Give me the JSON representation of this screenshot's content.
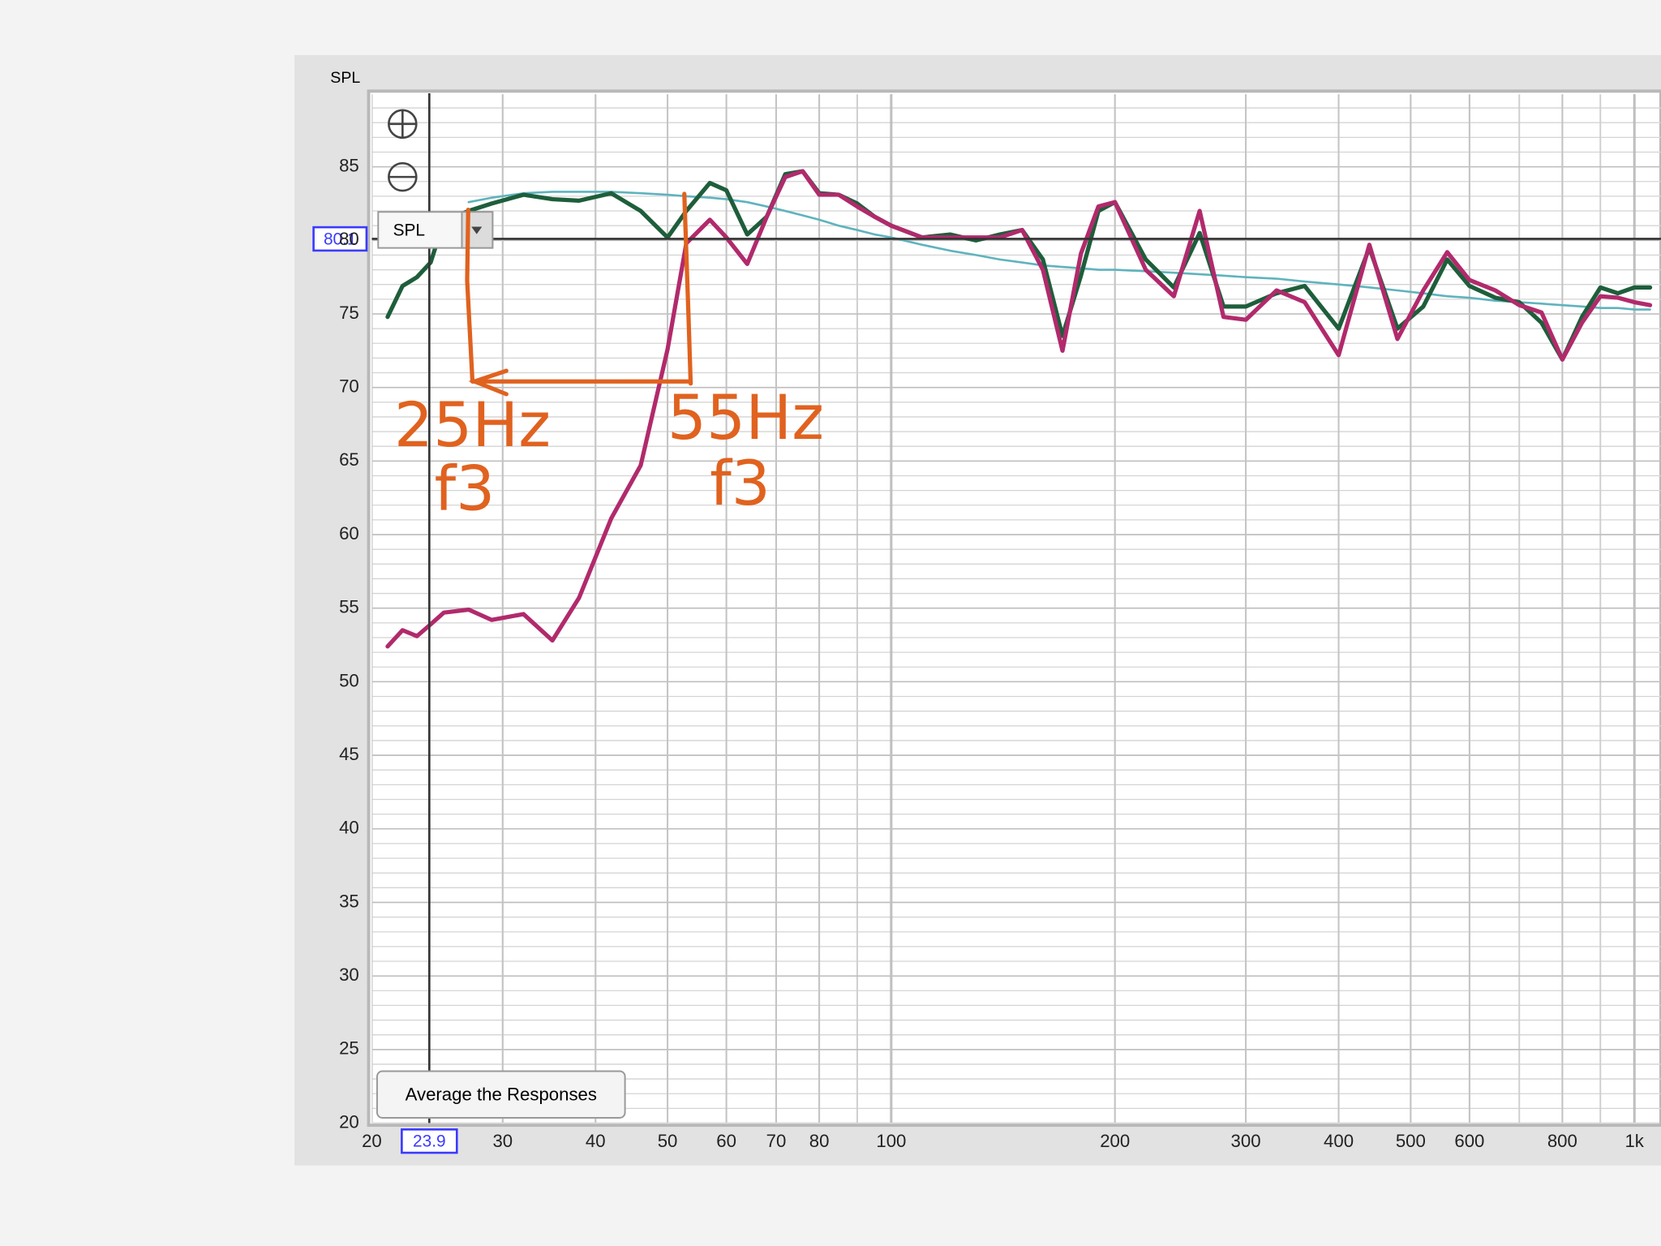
{
  "chart_data": {
    "type": "line",
    "y_label": "SPL",
    "x_scale": "log",
    "grid": true,
    "xlim": [
      20,
      1086
    ],
    "ylim": [
      20,
      90
    ],
    "xticks": [
      20,
      30,
      40,
      50,
      60,
      70,
      80,
      100,
      200,
      300,
      400,
      500,
      600,
      800,
      {
        "value": 1000,
        "label": "1k"
      }
    ],
    "yticks": [
      20,
      25,
      30,
      35,
      40,
      45,
      50,
      55,
      60,
      65,
      70,
      75,
      80,
      85
    ],
    "x": [
      21,
      22,
      23,
      24,
      25,
      27,
      29,
      32,
      35,
      38,
      42,
      46,
      50,
      53,
      57,
      60,
      64,
      68,
      72,
      76,
      80,
      85,
      90,
      95,
      100,
      110,
      120,
      130,
      140,
      150,
      160,
      170,
      180,
      190,
      200,
      220,
      240,
      260,
      280,
      300,
      330,
      360,
      400,
      440,
      480,
      520,
      560,
      600,
      650,
      700,
      750,
      800,
      850,
      900,
      950,
      1000,
      1050
    ],
    "series": [
      {
        "color": "#5fb3bd",
        "values": [
          null,
          null,
          null,
          null,
          null,
          82.6,
          82.9,
          83.2,
          83.3,
          83.3,
          83.3,
          83.2,
          83.1,
          83.0,
          82.9,
          82.8,
          82.6,
          82.3,
          82.0,
          81.7,
          81.4,
          81.0,
          80.7,
          80.4,
          80.2,
          79.7,
          79.3,
          79.0,
          78.7,
          78.5,
          78.3,
          78.2,
          78.1,
          78.0,
          78.0,
          77.9,
          77.8,
          77.7,
          77.6,
          77.5,
          77.4,
          77.2,
          77.0,
          76.8,
          76.6,
          76.4,
          76.2,
          76.1,
          75.9,
          75.8,
          75.7,
          75.6,
          75.5,
          75.4,
          75.4,
          75.3,
          75.3
        ]
      },
      {
        "color": "#1e5e3b",
        "values": [
          74.8,
          76.9,
          77.5,
          78.5,
          81.3,
          82.0,
          82.5,
          83.1,
          82.8,
          82.7,
          83.2,
          82.0,
          80.2,
          82.0,
          83.9,
          83.4,
          80.4,
          81.6,
          84.5,
          84.7,
          83.2,
          83.1,
          82.5,
          81.6,
          81.0,
          80.2,
          80.4,
          80.0,
          80.4,
          80.7,
          78.7,
          73.5,
          77.6,
          82.0,
          82.6,
          78.7,
          76.8,
          80.5,
          75.5,
          75.5,
          76.4,
          76.9,
          74.0,
          79.5,
          74.0,
          75.5,
          78.7,
          76.9,
          76.1,
          75.8,
          74.4,
          71.9,
          74.8,
          76.8,
          76.4,
          76.8,
          76.8
        ]
      },
      {
        "color": "#b12a6c",
        "values": [
          52.4,
          53.5,
          53.1,
          53.9,
          54.7,
          54.9,
          54.2,
          54.6,
          52.8,
          55.7,
          61.1,
          64.7,
          72.6,
          79.8,
          81.4,
          80.2,
          78.4,
          81.6,
          84.3,
          84.7,
          83.1,
          83.1,
          82.3,
          81.6,
          81.0,
          80.2,
          80.2,
          80.2,
          80.2,
          80.7,
          78.0,
          72.5,
          79.1,
          82.3,
          82.6,
          78.0,
          76.2,
          82.0,
          74.8,
          74.6,
          76.6,
          75.8,
          72.2,
          79.7,
          73.3,
          76.6,
          79.2,
          77.3,
          76.6,
          75.6,
          75.1,
          71.9,
          74.4,
          76.2,
          76.1,
          75.8,
          75.6
        ]
      }
    ],
    "cursor": {
      "x": 23.9,
      "y": 80.1
    },
    "annotations": [
      "25Hz",
      "f3",
      "55Hz",
      "f3"
    ]
  },
  "controls": {
    "dropdown": "SPL",
    "button": "Average the Responses"
  }
}
